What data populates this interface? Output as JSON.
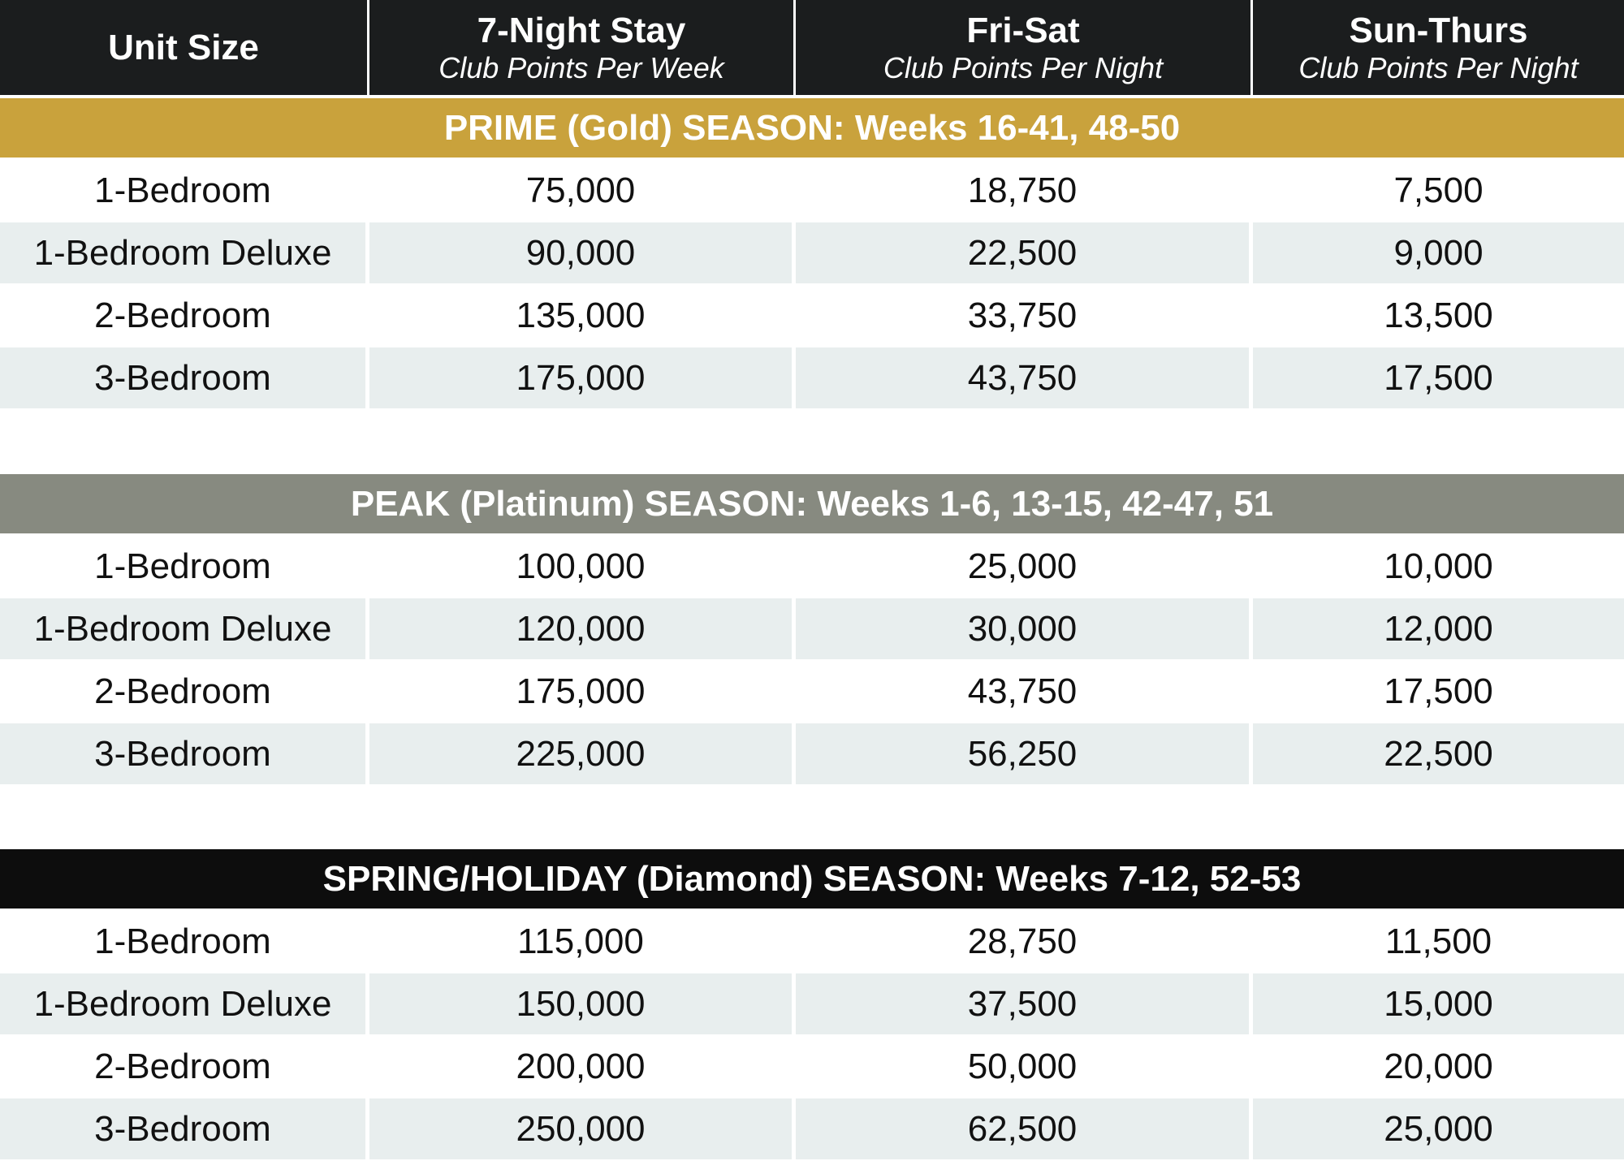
{
  "header": {
    "columns": [
      {
        "title": "Unit Size",
        "subtitle": ""
      },
      {
        "title": "7-Night Stay",
        "subtitle": "Club Points Per Week"
      },
      {
        "title": "Fri-Sat",
        "subtitle": "Club Points Per Night"
      },
      {
        "title": "Sun-Thurs",
        "subtitle": "Club Points Per Night"
      }
    ]
  },
  "colors": {
    "header": "#1b1d1e",
    "gold": "#c9a23c",
    "platinum": "#878a80",
    "diamond": "#0d0d0d",
    "alt_row": "#e8eeee"
  },
  "seasons": [
    {
      "label": "PRIME (Gold) SEASON: Weeks 16-41, 48-50",
      "rows": [
        [
          "1-Bedroom",
          "75,000",
          "18,750",
          "7,500"
        ],
        [
          "1-Bedroom Deluxe",
          "90,000",
          "22,500",
          "9,000"
        ],
        [
          "2-Bedroom",
          "135,000",
          "33,750",
          "13,500"
        ],
        [
          "3-Bedroom",
          "175,000",
          "43,750",
          "17,500"
        ]
      ]
    },
    {
      "label": "PEAK (Platinum) SEASON: Weeks 1-6, 13-15, 42-47, 51",
      "rows": [
        [
          "1-Bedroom",
          "100,000",
          "25,000",
          "10,000"
        ],
        [
          "1-Bedroom Deluxe",
          "120,000",
          "30,000",
          "12,000"
        ],
        [
          "2-Bedroom",
          "175,000",
          "43,750",
          "17,500"
        ],
        [
          "3-Bedroom",
          "225,000",
          "56,250",
          "22,500"
        ]
      ]
    },
    {
      "label": "SPRING/HOLIDAY (Diamond) SEASON: Weeks 7-12, 52-53",
      "rows": [
        [
          "1-Bedroom",
          "115,000",
          "28,750",
          "11,500"
        ],
        [
          "1-Bedroom Deluxe",
          "150,000",
          "37,500",
          "15,000"
        ],
        [
          "2-Bedroom",
          "200,000",
          "50,000",
          "20,000"
        ],
        [
          "3-Bedroom",
          "250,000",
          "62,500",
          "25,000"
        ]
      ]
    }
  ]
}
